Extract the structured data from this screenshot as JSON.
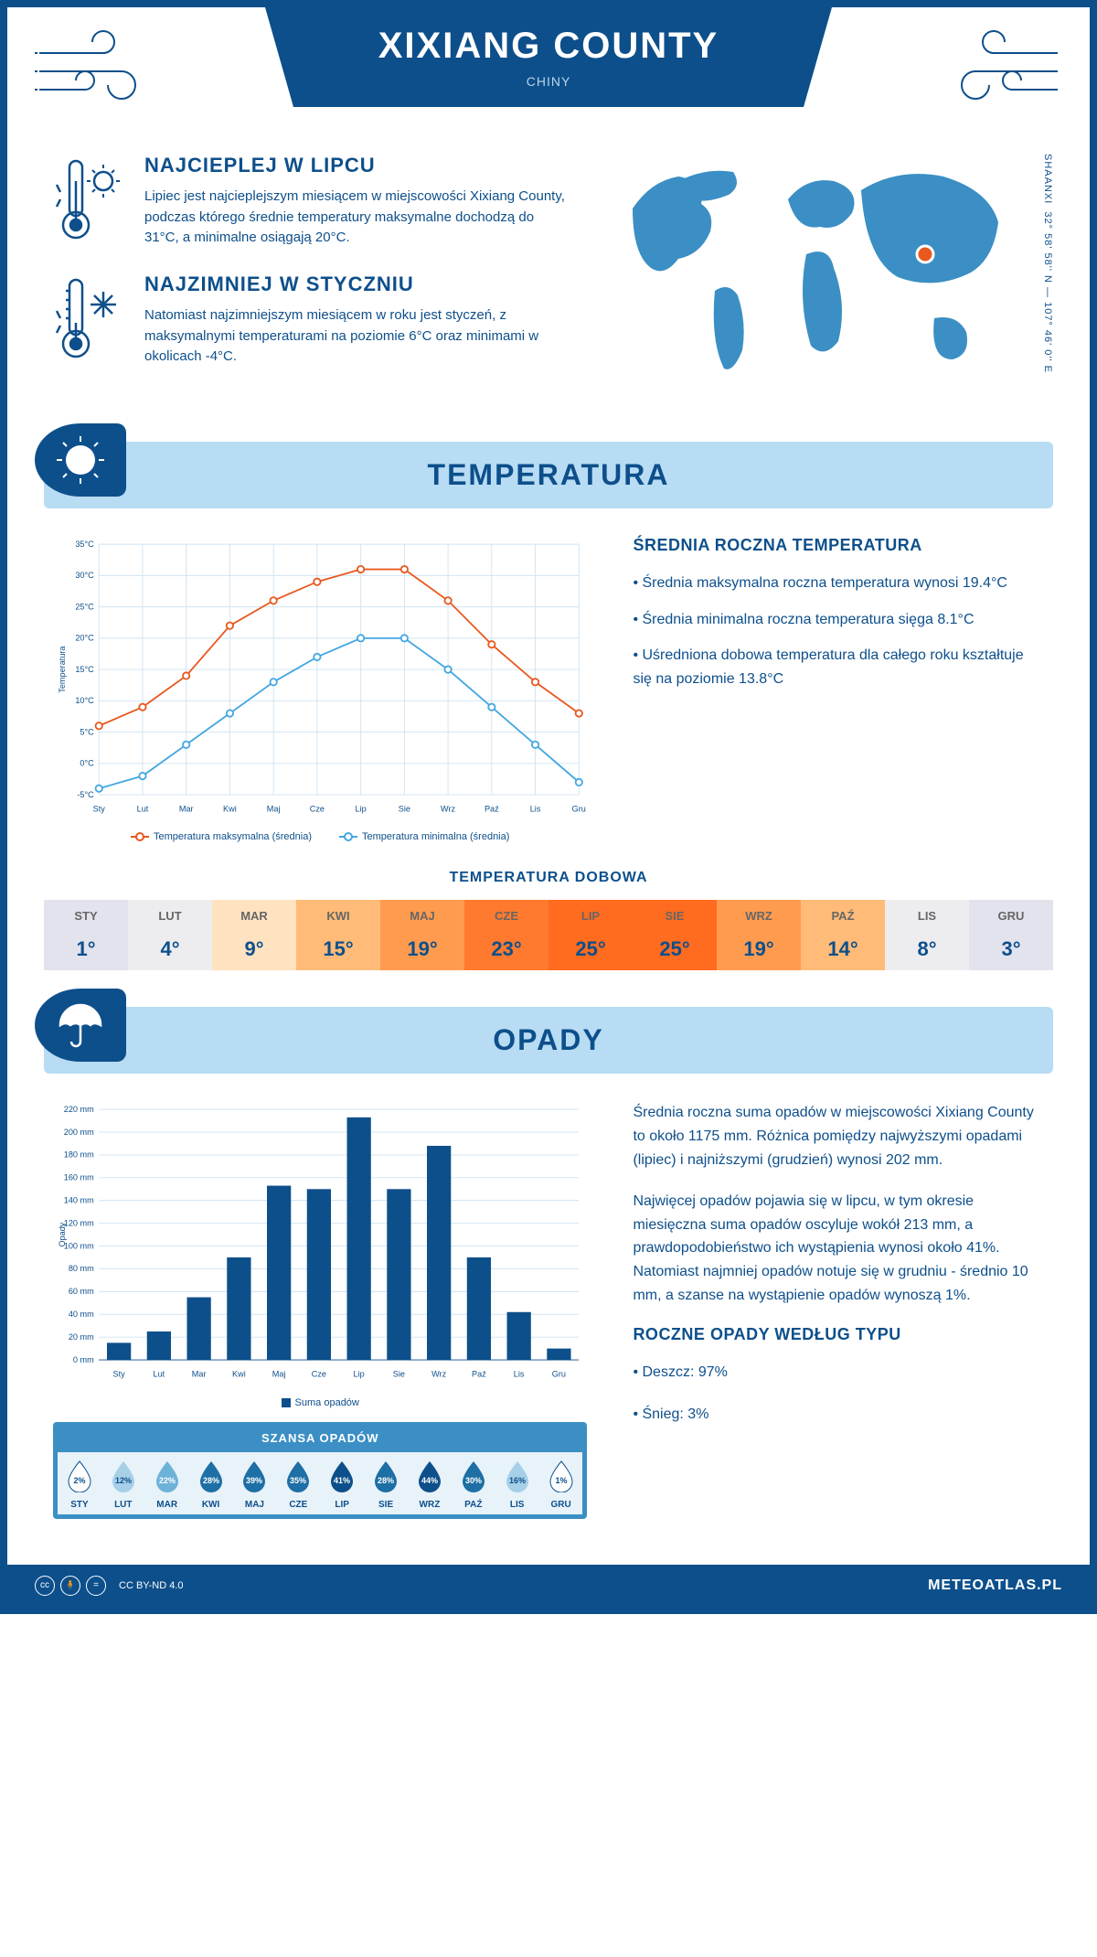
{
  "header": {
    "title": "XIXIANG COUNTY",
    "subtitle": "CHINY"
  },
  "coords": {
    "region": "SHAANXI",
    "lat": "32° 58' 58'' N",
    "lon": "107° 46' 0'' E"
  },
  "facts": {
    "hot": {
      "title": "NAJCIEPLEJ W LIPCU",
      "text": "Lipiec jest najcieplejszym miesiącem w miejscowości Xixiang County, podczas którego średnie temperatury maksymalne dochodzą do 31°C, a minimalne osiągają 20°C."
    },
    "cold": {
      "title": "NAJZIMNIEJ W STYCZNIU",
      "text": "Natomiast najzimniejszym miesiącem w roku jest styczeń, z maksymalnymi temperaturami na poziomie 6°C oraz minimami w okolicach -4°C."
    }
  },
  "sections": {
    "temp": "TEMPERATURA",
    "precip": "OPADY"
  },
  "temp_chart": {
    "type": "line",
    "months": [
      "Sty",
      "Lut",
      "Mar",
      "Kwi",
      "Maj",
      "Cze",
      "Lip",
      "Sie",
      "Wrz",
      "Paź",
      "Lis",
      "Gru"
    ],
    "max_series": {
      "label": "Temperatura maksymalna (średnia)",
      "color": "#e8581f",
      "values": [
        6,
        9,
        14,
        22,
        26,
        29,
        31,
        31,
        26,
        19,
        13,
        8
      ]
    },
    "min_series": {
      "label": "Temperatura minimalna (średnia)",
      "color": "#44a7e2",
      "values": [
        -4,
        -2,
        3,
        8,
        13,
        17,
        20,
        20,
        15,
        9,
        3,
        -3
      ]
    },
    "ylabel": "Temperatura",
    "ylim": [
      -5,
      35
    ],
    "ytick_step": 5,
    "y_suffix": "°C",
    "grid_color": "#cfe3f2",
    "axis_color": "#0d4f8b",
    "label_fontsize": 10
  },
  "temp_stats": {
    "title": "ŚREDNIA ROCZNA TEMPERATURA",
    "bullets": [
      "Średnia maksymalna roczna temperatura wynosi 19.4°C",
      "Średnia minimalna roczna temperatura sięga 8.1°C",
      "Uśredniona dobowa temperatura dla całego roku kształtuje się na poziomie 13.8°C"
    ]
  },
  "daily": {
    "title": "TEMPERATURA DOBOWA",
    "months": [
      "STY",
      "LUT",
      "MAR",
      "KWI",
      "MAJ",
      "CZE",
      "LIP",
      "SIE",
      "WRZ",
      "PAŹ",
      "LIS",
      "GRU"
    ],
    "temps": [
      "1°",
      "4°",
      "9°",
      "15°",
      "19°",
      "23°",
      "25°",
      "25°",
      "19°",
      "14°",
      "8°",
      "3°"
    ],
    "bg_colors": [
      "#e3e3ee",
      "#edecef",
      "#ffe2c0",
      "#ffbb77",
      "#ff9b4f",
      "#ff7a2e",
      "#ff6b1f",
      "#ff6b1f",
      "#ff9b4f",
      "#ffbb77",
      "#edecef",
      "#e3e3ee"
    ]
  },
  "precip_chart": {
    "type": "bar",
    "months": [
      "Sty",
      "Lut",
      "Mar",
      "Kwi",
      "Maj",
      "Cze",
      "Lip",
      "Sie",
      "Wrz",
      "Paź",
      "Lis",
      "Gru"
    ],
    "values": [
      15,
      25,
      55,
      90,
      153,
      150,
      213,
      150,
      188,
      90,
      42,
      10
    ],
    "bar_color": "#0d4f8b",
    "ylabel": "Opady",
    "ylim": [
      0,
      220
    ],
    "ytick_step": 20,
    "y_suffix": " mm",
    "grid_color": "#cfe3f2",
    "axis_color": "#0d4f8b",
    "legend": "Suma opadów",
    "bar_width": 0.6
  },
  "precip_text": {
    "p1": "Średnia roczna suma opadów w miejscowości Xixiang County to około 1175 mm. Różnica pomiędzy najwyższymi opadami (lipiec) i najniższymi (grudzień) wynosi 202 mm.",
    "p2": "Najwięcej opadów pojawia się w lipcu, w tym okresie miesięczna suma opadów oscyluje wokół 213 mm, a prawdopodobieństwo ich wystąpienia wynosi około 41%. Natomiast najmniej opadów notuje się w grudniu - średnio 10 mm, a szanse na wystąpienie opadów wynoszą 1%."
  },
  "chance": {
    "title": "SZANSA OPADÓW",
    "months": [
      "STY",
      "LUT",
      "MAR",
      "KWI",
      "MAJ",
      "CZE",
      "LIP",
      "SIE",
      "WRZ",
      "PAŹ",
      "LIS",
      "GRU"
    ],
    "values": [
      "2%",
      "12%",
      "22%",
      "28%",
      "39%",
      "35%",
      "41%",
      "28%",
      "44%",
      "30%",
      "16%",
      "1%"
    ],
    "drop_colors": [
      "#ffffff",
      "#a6cfe8",
      "#6db2d9",
      "#1d6fa5",
      "#1d6fa5",
      "#1d6fa5",
      "#0d4f8b",
      "#1d6fa5",
      "#0d4f8b",
      "#1d6fa5",
      "#a6cfe8",
      "#ffffff"
    ],
    "text_colors": [
      "#0d4f8b",
      "#0d4f8b",
      "#ffffff",
      "#ffffff",
      "#ffffff",
      "#ffffff",
      "#ffffff",
      "#ffffff",
      "#ffffff",
      "#ffffff",
      "#0d4f8b",
      "#0d4f8b"
    ]
  },
  "precip_type": {
    "title": "ROCZNE OPADY WEDŁUG TYPU",
    "bullets": [
      "Deszcz: 97%",
      "Śnieg: 3%"
    ]
  },
  "footer": {
    "license": "CC BY-ND 4.0",
    "site": "METEOATLAS.PL"
  }
}
